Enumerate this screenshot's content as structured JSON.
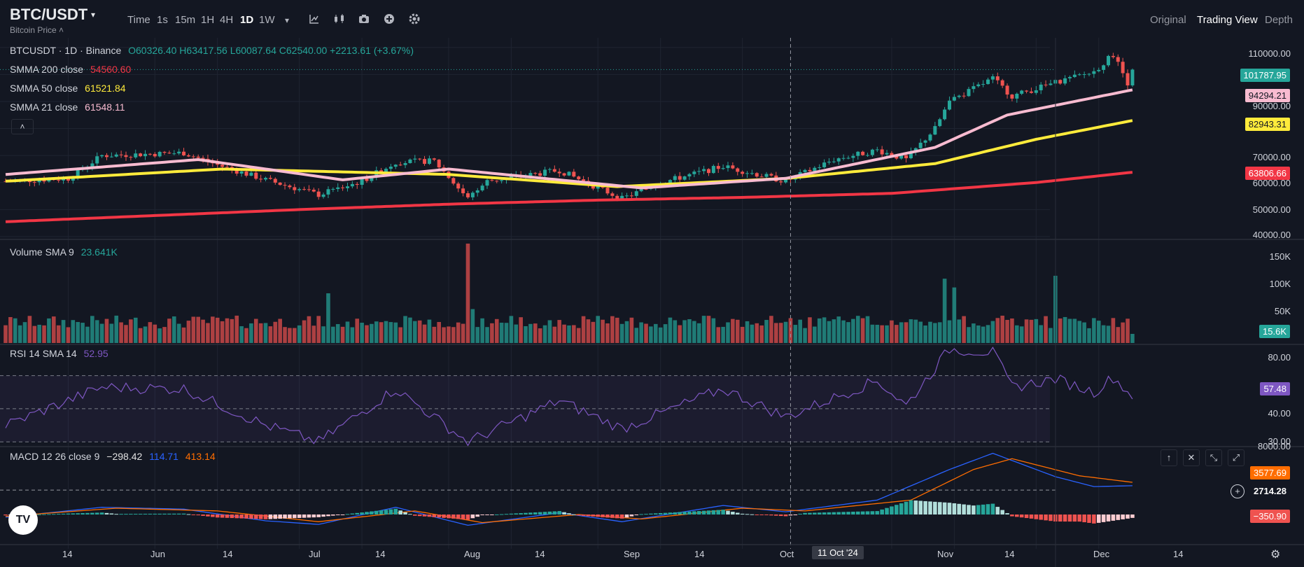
{
  "header": {
    "symbol": "BTC/USDT",
    "symbol_caret": "▾",
    "subtitle": "Bitcoin Price ˄",
    "timeframes": [
      "Time",
      "1s",
      "15m",
      "1H",
      "4H",
      "1D",
      "1W"
    ],
    "active_timeframe": "1D",
    "toolbar_icons": [
      "chevron-down-icon",
      "chart-type-icon",
      "candles-icon",
      "camera-icon",
      "add-icon",
      "settings-icon"
    ],
    "views": [
      "Original",
      "Trading View",
      "Depth"
    ],
    "active_view": "Trading View"
  },
  "legend": {
    "title": "BTCUSDT · 1D · Binance",
    "ohlc": "O60326.40 H63417.56 L60087.64 C62540.00 +2213.61 (+3.67%)",
    "smma200_label": "SMMA 200 close",
    "smma200_value": "54560.60",
    "smma50_label": "SMMA 50 close",
    "smma50_value": "61521.84",
    "smma21_label": "SMMA 21 close",
    "smma21_value": "61548.11",
    "collapse_icon": "˄",
    "volume_label": "Volume SMA 9",
    "volume_value": "23.641K",
    "rsi_label": "RSI 14 SMA 14",
    "rsi_value": "52.95",
    "macd_label": "MACD 12 26 close 9",
    "macd_v1": "−298.42",
    "macd_v2": "114.71",
    "macd_v3": "413.14"
  },
  "price_badges": {
    "last": "101787.95",
    "smma21": "94294.21",
    "smma50": "82943.31",
    "smma200": "63806.66",
    "volume": "15.6K",
    "rsi": "57.48",
    "macd_signal": "3577.69",
    "crosshair": "2714.28",
    "macd_hist": "−350.90"
  },
  "macd_buttons": [
    "↑",
    "✕",
    "⤡",
    "⤢"
  ],
  "crosshair_date": "11 Oct '24",
  "logo_text": "TV",
  "colors": {
    "background": "#131722",
    "grid": "#1f2431",
    "up": "#26a69a",
    "down": "#ef5350",
    "smma200": "#f23645",
    "smma50": "#ffeb3b",
    "smma21": "#f8bbd0",
    "rsi": "#7e57c2",
    "macd": "#2962ff",
    "signal": "#ff6d00"
  },
  "chart_data": [
    {
      "type": "candlestick",
      "title": "BTCUSDT · 1D · Binance",
      "x_ticks": [
        "14",
        "Jun",
        "14",
        "Jul",
        "14",
        "Aug",
        "14",
        "Sep",
        "14",
        "Oct",
        "11 Oct '24",
        "Nov",
        "14",
        "Dec",
        "14"
      ],
      "y_ticks": [
        "110000.00",
        "100000.00",
        "90000.00",
        "80000.00",
        "70000.00",
        "60000.00",
        "50000.00",
        "40000.00"
      ],
      "ylim": [
        40000,
        112000
      ],
      "close_anchors": [
        [
          "May 1",
          60500
        ],
        [
          "May 14",
          61500
        ],
        [
          "May 21",
          70000
        ],
        [
          "Jun 7",
          71000
        ],
        [
          "Jun 14",
          66500
        ],
        [
          "Jun 24",
          61000
        ],
        [
          "Jul 5",
          55500
        ],
        [
          "Jul 14",
          60500
        ],
        [
          "Jul 21",
          67500
        ],
        [
          "Jul 29",
          68000
        ],
        [
          "Aug 5",
          54000
        ],
        [
          "Aug 9",
          60500
        ],
        [
          "Aug 24",
          64500
        ],
        [
          "Sep 6",
          54000
        ],
        [
          "Sep 14",
          60000
        ],
        [
          "Sep 27",
          66000
        ],
        [
          "Oct 10",
          60500
        ],
        [
          "Oct 20",
          68500
        ],
        [
          "Oct 29",
          72000
        ],
        [
          "Nov 4",
          68500
        ],
        [
          "Nov 10",
          80000
        ],
        [
          "Nov 13",
          90000
        ],
        [
          "Nov 22",
          98500
        ],
        [
          "Nov 26",
          92000
        ],
        [
          "Dec 5",
          97000
        ],
        [
          "Dec 13",
          101000
        ],
        [
          "Dec 17",
          107500
        ],
        [
          "Dec 20",
          97000
        ],
        [
          "Dec 21",
          101787.95
        ]
      ],
      "series": [
        {
          "name": "SMMA 200 close",
          "values": [
            [
              "May 1",
              45500
            ],
            [
              "Jul 1",
              50000
            ],
            [
              "Aug 1",
              52000
            ],
            [
              "Sep 1",
              53500
            ],
            [
              "Oct 1",
              54500
            ],
            [
              "Nov 1",
              56000
            ],
            [
              "Dec 1",
              60000
            ],
            [
              "Dec 21",
              63806.66
            ]
          ]
        },
        {
          "name": "SMMA 50 close",
          "values": [
            [
              "May 1",
              60500
            ],
            [
              "Jun 15",
              65000
            ],
            [
              "Aug 1",
              63000
            ],
            [
              "Sep 5",
              58500
            ],
            [
              "Oct 10",
              61521.84
            ],
            [
              "Nov 10",
              67000
            ],
            [
              "Dec 1",
              76000
            ],
            [
              "Dec 21",
              82943.31
            ]
          ]
        },
        {
          "name": "SMMA 21 close",
          "values": [
            [
              "May 1",
              63000
            ],
            [
              "Jun 10",
              68500
            ],
            [
              "Jul 10",
              61000
            ],
            [
              "Aug 1",
              65000
            ],
            [
              "Sep 10",
              58000
            ],
            [
              "Oct 10",
              61548.11
            ],
            [
              "Nov 10",
              73000
            ],
            [
              "Nov 25",
              85000
            ],
            [
              "Dec 21",
              94294.21
            ]
          ]
        }
      ]
    },
    {
      "type": "bar",
      "title": "Volume SMA 9",
      "y_ticks": [
        "150K",
        "100K",
        "50K"
      ],
      "ylim": [
        0,
        170000
      ],
      "spikes": [
        [
          "Jul 7",
          85000
        ],
        [
          "Aug 5",
          170000
        ],
        [
          "Aug 6",
          58000
        ],
        [
          "Nov 12",
          110000
        ],
        [
          "Nov 14",
          95000
        ],
        [
          "Dec 5",
          115000
        ]
      ],
      "last": 15600
    },
    {
      "type": "line",
      "title": "RSI 14 SMA 14",
      "y_ticks": [
        "80.00",
        "40.00",
        "30.00"
      ],
      "ylim": [
        28,
        88
      ],
      "bands": [
        70,
        50,
        30
      ],
      "rsi_anchors": [
        [
          "May 1",
          40
        ],
        [
          "May 21",
          63
        ],
        [
          "Jun 7",
          62
        ],
        [
          "Jun 24",
          40
        ],
        [
          "Jul 5",
          30
        ],
        [
          "Jul 21",
          62
        ],
        [
          "Aug 5",
          30
        ],
        [
          "Aug 24",
          55
        ],
        [
          "Sep 6",
          38
        ],
        [
          "Sep 27",
          62
        ],
        [
          "Oct 10",
          45
        ],
        [
          "Oct 29",
          67
        ],
        [
          "Nov 4",
          52
        ],
        [
          "Nov 13",
          86
        ],
        [
          "Nov 22",
          84
        ],
        [
          "Nov 26",
          63
        ],
        [
          "Dec 5",
          68
        ],
        [
          "Dec 13",
          60
        ],
        [
          "Dec 17",
          69
        ],
        [
          "Dec 21",
          57.48
        ]
      ],
      "signal_value": 52.95
    },
    {
      "type": "line",
      "title": "MACD 12 26 close 9",
      "y_ticks": [
        "8000.00"
      ],
      "ylim": [
        -1500,
        8000
      ],
      "macd_anchors": [
        [
          "May 1",
          -300
        ],
        [
          "May 21",
          800
        ],
        [
          "Jun 7",
          600
        ],
        [
          "Jun 24",
          -700
        ],
        [
          "Jul 5",
          -1100
        ],
        [
          "Jul 21",
          800
        ],
        [
          "Aug 5",
          -1200
        ],
        [
          "Aug 24",
          200
        ],
        [
          "Sep 6",
          -800
        ],
        [
          "Sep 27",
          1000
        ],
        [
          "Oct 10",
          300
        ],
        [
          "Oct 29",
          1600
        ],
        [
          "Nov 13",
          5000
        ],
        [
          "Nov 22",
          6800
        ],
        [
          "Dec 5",
          4200
        ],
        [
          "Dec 13",
          3100
        ],
        [
          "Dec 21",
          3200
        ]
      ],
      "signal_anchors": [
        [
          "May 1",
          -200
        ],
        [
          "May 24",
          700
        ],
        [
          "Jun 14",
          400
        ],
        [
          "Jul 5",
          -800
        ],
        [
          "Jul 25",
          400
        ],
        [
          "Aug 8",
          -900
        ],
        [
          "Aug 28",
          0
        ],
        [
          "Sep 10",
          -500
        ],
        [
          "Oct 1",
          700
        ],
        [
          "Oct 14",
          400
        ],
        [
          "Nov 5",
          1600
        ],
        [
          "Nov 18",
          5000
        ],
        [
          "Nov 26",
          6200
        ],
        [
          "Dec 10",
          4300
        ],
        [
          "Dec 21",
          3577.69
        ]
      ]
    }
  ]
}
